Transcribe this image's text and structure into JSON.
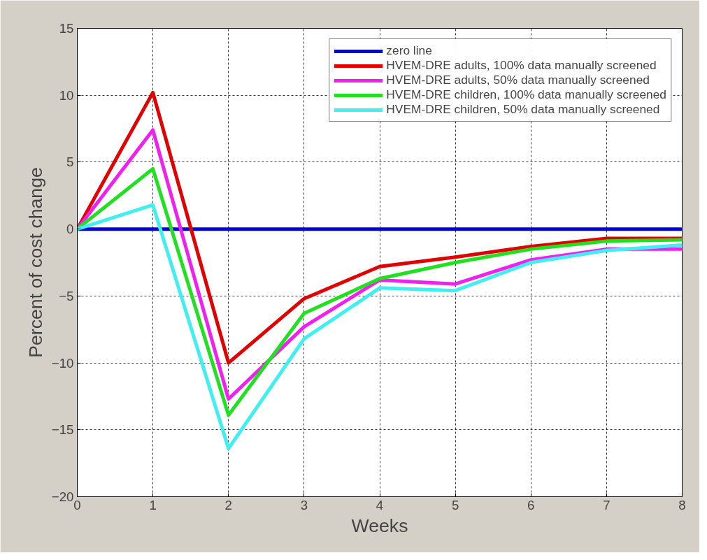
{
  "chart_data": {
    "type": "line",
    "xlabel": "Weeks",
    "ylabel": "Percent of cost change",
    "x": [
      0,
      1,
      2,
      3,
      4,
      5,
      6,
      7,
      8
    ],
    "series": [
      {
        "name": "zero line",
        "color": "#0000e0",
        "values": [
          0,
          0,
          0,
          0,
          0,
          0,
          0,
          0,
          0
        ]
      },
      {
        "name": "HVEM-DRE adults, 100% data manually screened",
        "color": "#e00000",
        "values": [
          0,
          10.2,
          -10.0,
          -5.2,
          -2.8,
          -2.1,
          -1.3,
          -0.7,
          -0.7
        ]
      },
      {
        "name": "HVEM-DRE adults, 50% data manually screened",
        "color": "#f020f0",
        "values": [
          0,
          7.4,
          -12.7,
          -7.3,
          -3.8,
          -4.1,
          -2.3,
          -1.5,
          -1.5
        ]
      },
      {
        "name": "HVEM-DRE children, 100% data manually screened",
        "color": "#20e020",
        "values": [
          0,
          4.5,
          -13.9,
          -6.3,
          -3.7,
          -2.5,
          -1.5,
          -0.9,
          -0.8
        ]
      },
      {
        "name": "HVEM-DRE children, 50% data manually screened",
        "color": "#40f0f0",
        "values": [
          0,
          1.8,
          -16.4,
          -8.2,
          -4.4,
          -4.6,
          -2.5,
          -1.6,
          -1.2
        ]
      }
    ],
    "xlim": [
      0,
      8
    ],
    "xticks": [
      0,
      1,
      2,
      3,
      4,
      5,
      6,
      7,
      8
    ],
    "ylim": [
      -20,
      15
    ],
    "yticks": [
      -20,
      -15,
      -10,
      -5,
      0,
      5,
      10,
      15
    ],
    "grid": true,
    "legend": "top right",
    "marker": "none",
    "line_style": "solid"
  }
}
